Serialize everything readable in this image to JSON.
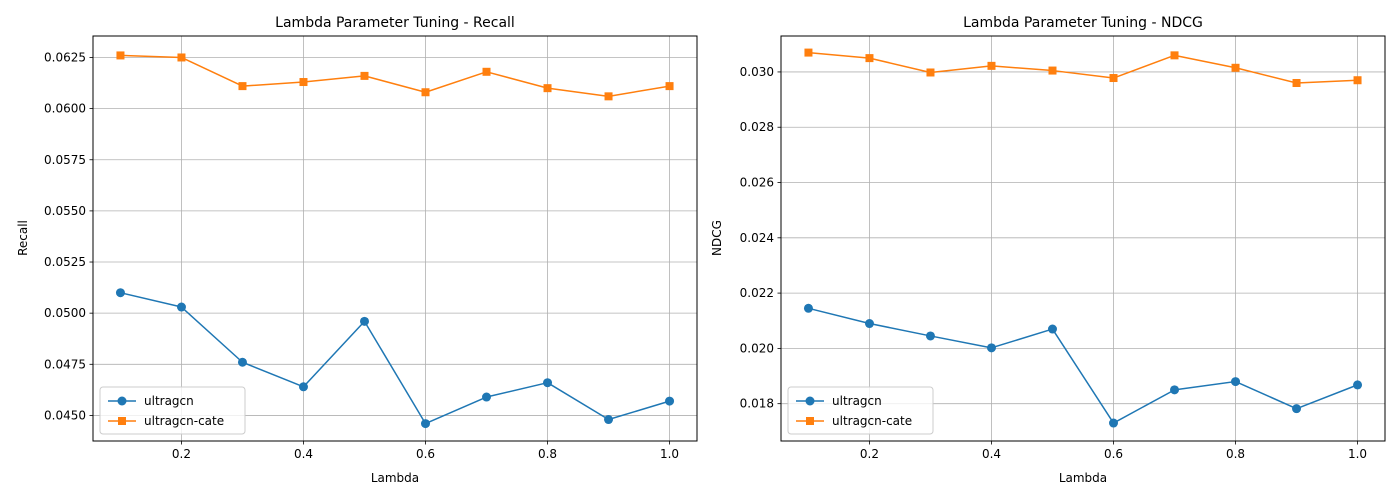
{
  "chart_data": [
    {
      "type": "line",
      "title": "Lambda Parameter Tuning - Recall",
      "xlabel": "Lambda",
      "ylabel": "Recall",
      "x": [
        0.1,
        0.2,
        0.3,
        0.4,
        0.5,
        0.6,
        0.7,
        0.8,
        0.9,
        1.0
      ],
      "xlim": [
        0.055,
        1.045
      ],
      "ylim": [
        0.04375,
        0.06355
      ],
      "xticks": [
        0.2,
        0.4,
        0.6,
        0.8,
        1.0
      ],
      "xtick_labels": [
        "0.2",
        "0.4",
        "0.6",
        "0.8",
        "1.0"
      ],
      "yticks": [
        0.045,
        0.0475,
        0.05,
        0.0525,
        0.055,
        0.0575,
        0.06,
        0.0625
      ],
      "ytick_labels": [
        "0.0450",
        "0.0475",
        "0.0500",
        "0.0525",
        "0.0550",
        "0.0575",
        "0.0600",
        "0.0625"
      ],
      "grid": true,
      "legend_position": "lower-left",
      "series": [
        {
          "name": "ultragcn",
          "color": "#1f77b4",
          "marker": "circle",
          "values": [
            0.051,
            0.0503,
            0.0476,
            0.0464,
            0.0496,
            0.0446,
            0.0459,
            0.0466,
            0.0448,
            0.0457
          ]
        },
        {
          "name": "ultragcn-cate",
          "color": "#ff7f0e",
          "marker": "square",
          "values": [
            0.0626,
            0.0625,
            0.0611,
            0.0613,
            0.0616,
            0.0608,
            0.0618,
            0.061,
            0.0606,
            0.0611
          ]
        }
      ]
    },
    {
      "type": "line",
      "title": "Lambda Parameter Tuning - NDCG",
      "xlabel": "Lambda",
      "ylabel": "NDCG",
      "x": [
        0.1,
        0.2,
        0.3,
        0.4,
        0.5,
        0.6,
        0.7,
        0.8,
        0.9,
        1.0
      ],
      "xlim": [
        0.055,
        1.045
      ],
      "ylim": [
        0.01665,
        0.0313
      ],
      "xticks": [
        0.2,
        0.4,
        0.6,
        0.8,
        1.0
      ],
      "xtick_labels": [
        "0.2",
        "0.4",
        "0.6",
        "0.8",
        "1.0"
      ],
      "yticks": [
        0.018,
        0.02,
        0.022,
        0.024,
        0.026,
        0.028,
        0.03
      ],
      "ytick_labels": [
        "0.018",
        "0.020",
        "0.022",
        "0.024",
        "0.026",
        "0.028",
        "0.030"
      ],
      "grid": true,
      "legend_position": "lower-left",
      "series": [
        {
          "name": "ultragcn",
          "color": "#1f77b4",
          "marker": "circle",
          "values": [
            0.02145,
            0.0209,
            0.02045,
            0.02002,
            0.0207,
            0.0173,
            0.0185,
            0.0188,
            0.01782,
            0.01868
          ]
        },
        {
          "name": "ultragcn-cate",
          "color": "#ff7f0e",
          "marker": "square",
          "values": [
            0.0307,
            0.0305,
            0.02998,
            0.03022,
            0.03005,
            0.02978,
            0.0306,
            0.03015,
            0.0296,
            0.0297
          ]
        }
      ]
    }
  ]
}
